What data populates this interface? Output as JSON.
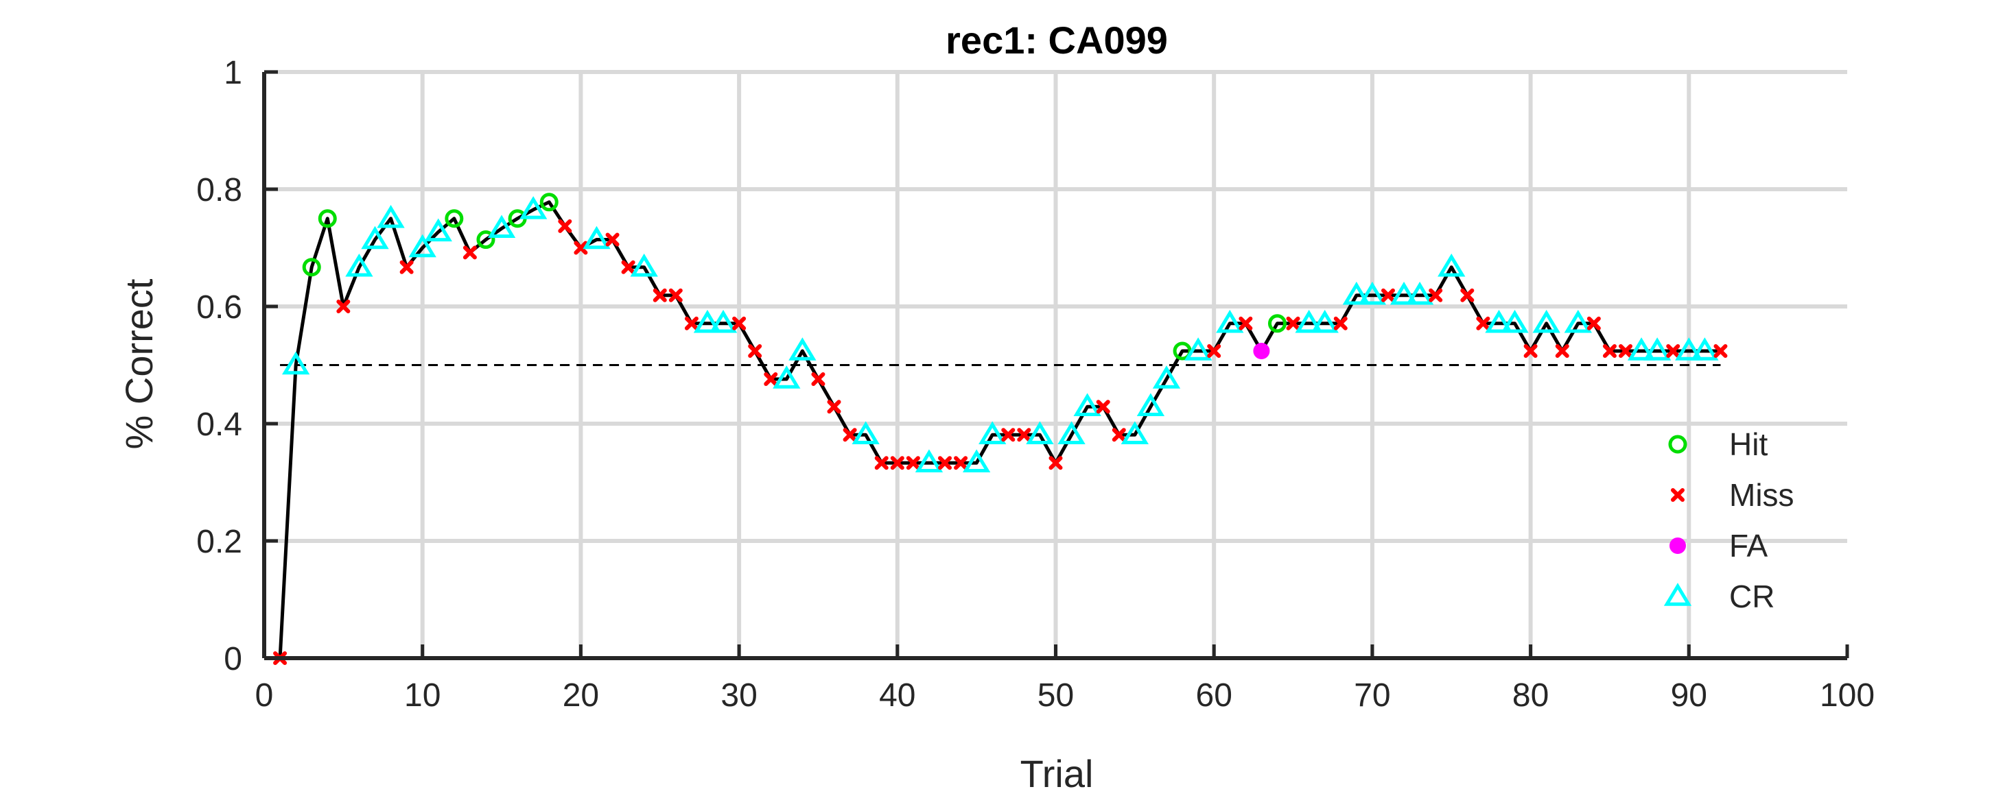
{
  "chart_data": {
    "type": "scatter",
    "title": "rec1: CA099",
    "xlabel": "Trial",
    "ylabel": "% Correct",
    "xlim": [
      0,
      100
    ],
    "ylim": [
      0,
      1
    ],
    "xticks": [
      0,
      10,
      20,
      30,
      40,
      50,
      60,
      70,
      80,
      90,
      100
    ],
    "yticks": [
      0,
      0.2,
      0.4,
      0.6,
      0.8,
      1
    ],
    "ytick_labels": [
      "0",
      "0.2",
      "0.4",
      "0.6",
      "0.8",
      "1"
    ],
    "grid": true,
    "chance_level": 0.5,
    "legend": {
      "position": "bottom-right",
      "entries": [
        {
          "label": "Hit",
          "marker": "circle-open",
          "color": "#00dd00"
        },
        {
          "label": "Miss",
          "marker": "x",
          "color": "#ff0000"
        },
        {
          "label": "FA",
          "marker": "circle-filled",
          "color": "#ff00ff"
        },
        {
          "label": "CR",
          "marker": "triangle-open",
          "color": "#00ffff"
        }
      ]
    },
    "line_color": "#000000",
    "trials": [
      1,
      2,
      3,
      4,
      5,
      6,
      7,
      8,
      9,
      10,
      11,
      12,
      13,
      14,
      15,
      16,
      17,
      18,
      19,
      20,
      21,
      22,
      23,
      24,
      25,
      26,
      27,
      28,
      29,
      30,
      31,
      32,
      33,
      34,
      35,
      36,
      37,
      38,
      39,
      40,
      41,
      42,
      43,
      44,
      45,
      46,
      47,
      48,
      49,
      50,
      51,
      52,
      53,
      54,
      55,
      56,
      57,
      58,
      59,
      60,
      61,
      62,
      63,
      64,
      65,
      66,
      67,
      68,
      69,
      70,
      71,
      72,
      73,
      74,
      75,
      76,
      77,
      78,
      79,
      80,
      81,
      82,
      83,
      84,
      85,
      86,
      87,
      88,
      89,
      90,
      91,
      92
    ],
    "values": [
      0,
      0.5,
      0.667,
      0.75,
      0.6,
      0.667,
      0.714,
      0.75,
      0.667,
      0.7,
      0.727,
      0.75,
      0.692,
      0.714,
      0.733,
      0.75,
      0.765,
      0.778,
      0.737,
      0.7,
      0.714,
      0.714,
      0.667,
      0.667,
      0.619,
      0.619,
      0.571,
      0.571,
      0.571,
      0.571,
      0.524,
      0.476,
      0.476,
      0.524,
      0.476,
      0.429,
      0.381,
      0.381,
      0.333,
      0.333,
      0.333,
      0.333,
      0.333,
      0.333,
      0.333,
      0.381,
      0.381,
      0.381,
      0.381,
      0.333,
      0.381,
      0.429,
      0.429,
      0.381,
      0.381,
      0.429,
      0.476,
      0.524,
      0.524,
      0.524,
      0.571,
      0.571,
      0.524,
      0.571,
      0.571,
      0.571,
      0.571,
      0.571,
      0.619,
      0.619,
      0.619,
      0.619,
      0.619,
      0.619,
      0.667,
      0.619,
      0.571,
      0.571,
      0.571,
      0.524,
      0.571,
      0.524,
      0.571,
      0.571,
      0.524,
      0.524,
      0.524,
      0.524,
      0.524,
      0.524,
      0.524,
      0.524
    ],
    "outcomes": [
      "Miss",
      "CR",
      "Hit",
      "Hit",
      "Miss",
      "CR",
      "CR",
      "CR",
      "Miss",
      "CR",
      "CR",
      "Hit",
      "Miss",
      "Hit",
      "CR",
      "Hit",
      "CR",
      "Hit",
      "Miss",
      "Miss",
      "CR",
      "Miss",
      "Miss",
      "CR",
      "Miss",
      "Miss",
      "Miss",
      "CR",
      "CR",
      "Miss",
      "Miss",
      "Miss",
      "CR",
      "CR",
      "Miss",
      "Miss",
      "Miss",
      "CR",
      "Miss",
      "Miss",
      "Miss",
      "CR",
      "Miss",
      "Miss",
      "CR",
      "CR",
      "Miss",
      "Miss",
      "CR",
      "Miss",
      "CR",
      "CR",
      "Miss",
      "Miss",
      "CR",
      "CR",
      "CR",
      "Hit",
      "CR",
      "Miss",
      "CR",
      "Miss",
      "FA",
      "Hit",
      "Miss",
      "CR",
      "CR",
      "Miss",
      "CR",
      "CR",
      "Miss",
      "CR",
      "CR",
      "Miss",
      "CR",
      "Miss",
      "Miss",
      "CR",
      "CR",
      "Miss",
      "CR",
      "Miss",
      "CR",
      "Miss",
      "Miss",
      "Miss",
      "CR",
      "CR",
      "Miss",
      "CR",
      "CR",
      "Miss"
    ]
  }
}
